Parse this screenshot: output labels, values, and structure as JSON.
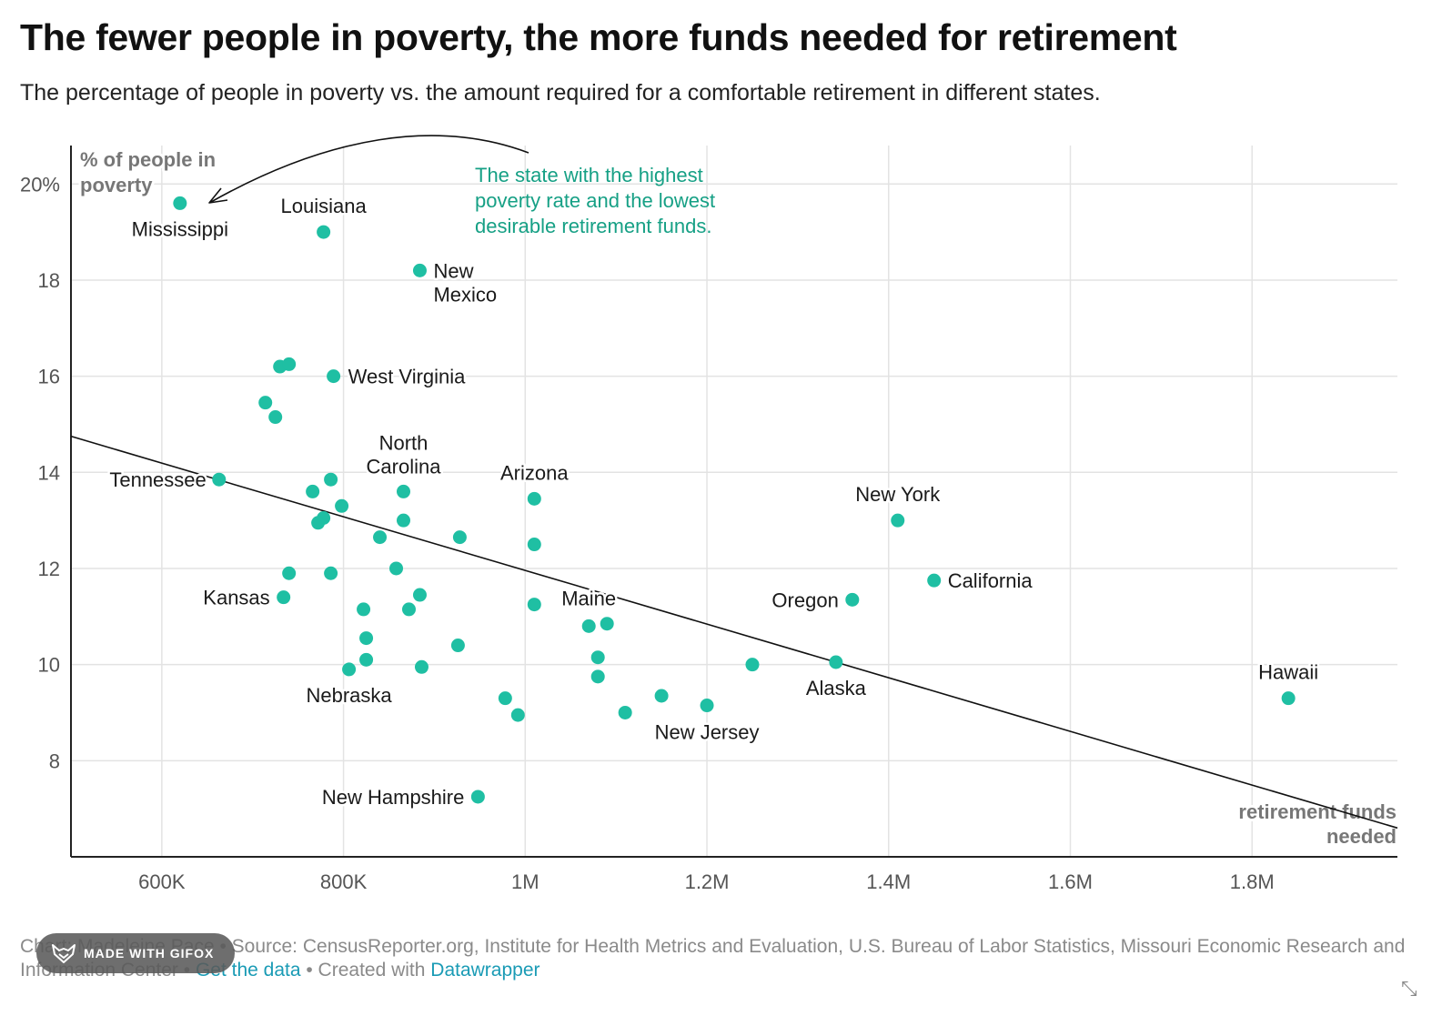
{
  "title": "The fewer people in poverty, the more funds needed for retirement",
  "subtitle": "The percentage of people in poverty vs. the amount required for a comfortable retirement in different states.",
  "colors": {
    "dot": "#1fbfa3",
    "annotation": "#16a085",
    "grid": "#e3e3e3",
    "axis": "#222222",
    "trend": "#111111"
  },
  "chart_data": {
    "type": "scatter",
    "xlabel": "retirement funds needed",
    "ylabel": "% of people in poverty",
    "xlim": [
      500000,
      1960000
    ],
    "ylim": [
      6.0,
      20.8
    ],
    "x_ticks": [
      600000,
      800000,
      1000000,
      1200000,
      1400000,
      1600000,
      1800000
    ],
    "x_tick_labels": [
      "600K",
      "800K",
      "1M",
      "1.2M",
      "1.4M",
      "1.6M",
      "1.8M"
    ],
    "y_ticks": [
      8,
      10,
      12,
      14,
      16,
      18,
      20
    ],
    "y_tick_labels": [
      "8",
      "10",
      "12",
      "14",
      "16",
      "18",
      "20%"
    ],
    "grid": true,
    "trendline": {
      "x": [
        500000,
        1960000
      ],
      "y": [
        14.75,
        6.6
      ]
    },
    "annotation": {
      "lines": [
        "The state with the highest",
        "poverty rate and the lowest",
        "desirable retirement funds."
      ],
      "points_to": "Mississippi"
    },
    "points": [
      {
        "x": 620000,
        "y": 19.6,
        "label": "Mississippi"
      },
      {
        "x": 778000,
        "y": 19.0,
        "label": "Louisiana"
      },
      {
        "x": 884000,
        "y": 18.2,
        "label": "New Mexico"
      },
      {
        "x": 789000,
        "y": 16.0,
        "label": "West Virginia"
      },
      {
        "x": 663000,
        "y": 13.85,
        "label": "Tennessee"
      },
      {
        "x": 866000,
        "y": 13.6,
        "label": "North Carolina"
      },
      {
        "x": 1010000,
        "y": 13.45,
        "label": "Arizona"
      },
      {
        "x": 1410000,
        "y": 13.0,
        "label": "New York"
      },
      {
        "x": 1450000,
        "y": 11.75,
        "label": "California"
      },
      {
        "x": 1360000,
        "y": 11.35,
        "label": "Oregon"
      },
      {
        "x": 734000,
        "y": 11.4,
        "label": "Kansas"
      },
      {
        "x": 1090000,
        "y": 10.85,
        "label": "Maine"
      },
      {
        "x": 1342000,
        "y": 10.05,
        "label": "Alaska"
      },
      {
        "x": 1840000,
        "y": 9.3,
        "label": "Hawaii"
      },
      {
        "x": 806000,
        "y": 9.9,
        "label": "Nebraska"
      },
      {
        "x": 1200000,
        "y": 9.15,
        "label": "New Jersey"
      },
      {
        "x": 948000,
        "y": 7.25,
        "label": "New Hampshire"
      },
      {
        "x": 730000,
        "y": 16.2
      },
      {
        "x": 740000,
        "y": 16.25
      },
      {
        "x": 714000,
        "y": 15.45
      },
      {
        "x": 725000,
        "y": 15.15
      },
      {
        "x": 786000,
        "y": 13.85
      },
      {
        "x": 766000,
        "y": 13.6
      },
      {
        "x": 798000,
        "y": 13.3
      },
      {
        "x": 778000,
        "y": 13.05
      },
      {
        "x": 772000,
        "y": 12.95
      },
      {
        "x": 866000,
        "y": 13.0
      },
      {
        "x": 840000,
        "y": 12.65
      },
      {
        "x": 928000,
        "y": 12.65
      },
      {
        "x": 1010000,
        "y": 12.5
      },
      {
        "x": 858000,
        "y": 12.0
      },
      {
        "x": 740000,
        "y": 11.9
      },
      {
        "x": 786000,
        "y": 11.9
      },
      {
        "x": 884000,
        "y": 11.45
      },
      {
        "x": 822000,
        "y": 11.15
      },
      {
        "x": 872000,
        "y": 11.15
      },
      {
        "x": 1010000,
        "y": 11.25
      },
      {
        "x": 1070000,
        "y": 10.8
      },
      {
        "x": 825000,
        "y": 10.55
      },
      {
        "x": 926000,
        "y": 10.4
      },
      {
        "x": 1080000,
        "y": 10.15
      },
      {
        "x": 825000,
        "y": 10.1
      },
      {
        "x": 886000,
        "y": 9.95
      },
      {
        "x": 1080000,
        "y": 9.75
      },
      {
        "x": 1250000,
        "y": 10.0
      },
      {
        "x": 978000,
        "y": 9.3
      },
      {
        "x": 1150000,
        "y": 9.35
      },
      {
        "x": 992000,
        "y": 8.95
      },
      {
        "x": 1110000,
        "y": 9.0
      }
    ]
  },
  "footer": {
    "prefix": "Chart: Madeleine Pace • Source: CensusReporter.org, Institute for Health Metrics and Evaluation, U.S. Bureau of Labor Statistics, Missouri Economic Research and Information Center • ",
    "get_data": "Get the data",
    "sep": " • Created with ",
    "datawrapper": "Datawrapper"
  },
  "watermark": "MADE WITH GIFOX"
}
